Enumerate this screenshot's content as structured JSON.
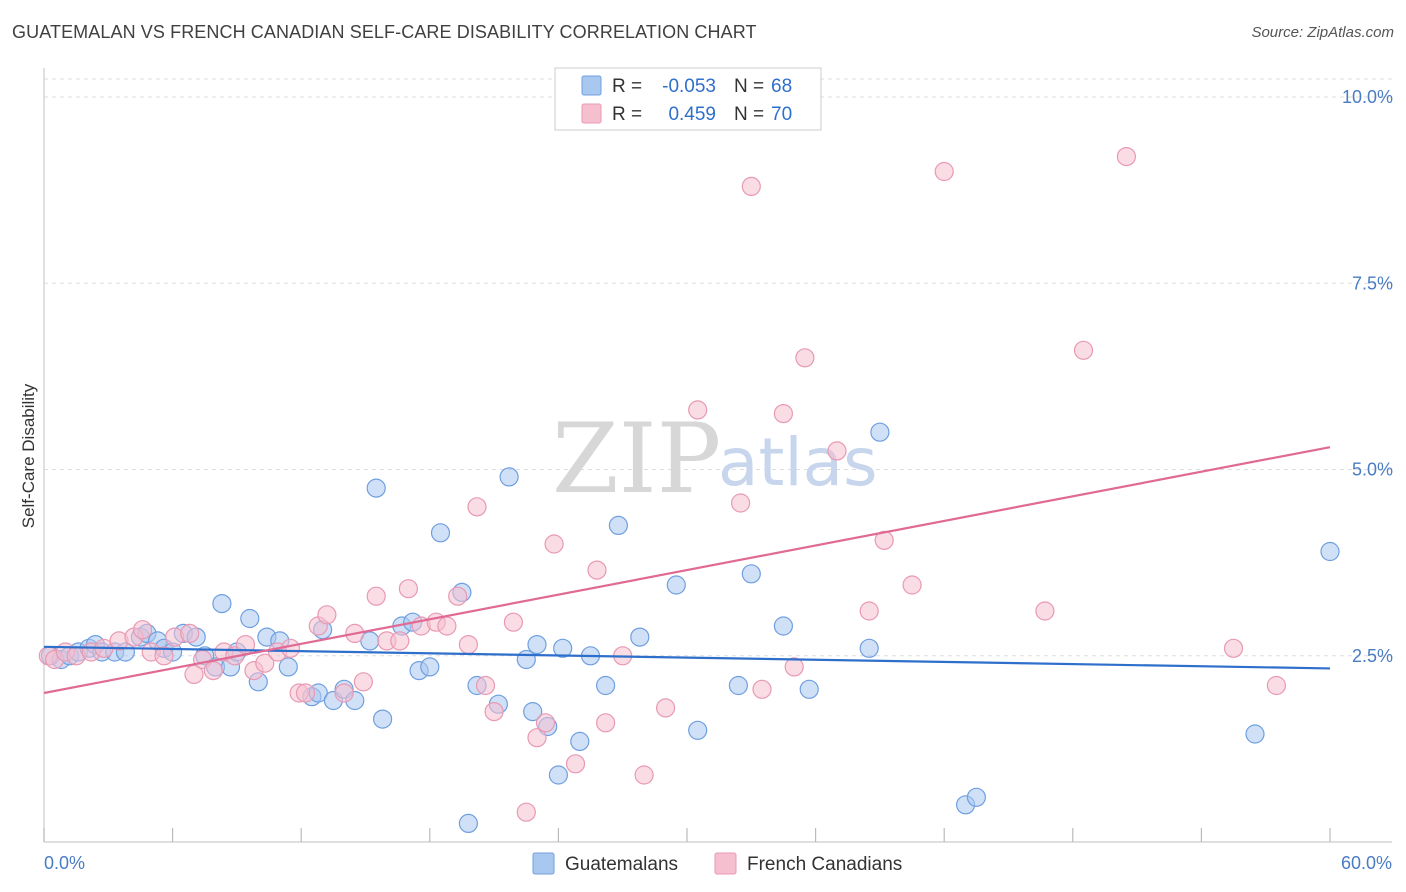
{
  "title": "GUATEMALAN VS FRENCH CANADIAN SELF-CARE DISABILITY CORRELATION CHART",
  "source": "Source: ZipAtlas.com",
  "watermark": {
    "zip": "ZIP",
    "atlas": "atlas"
  },
  "colors": {
    "blue_fill": "#a9c8f0",
    "blue_stroke": "#6f9fe0",
    "blue_line": "#2f6fcc",
    "pink_fill": "#f6bfd0",
    "pink_stroke": "#e899b3",
    "pink_line": "#e06a94",
    "grid": "#dddddd",
    "axis_label": "#4a7cc4"
  },
  "legend": {
    "rows": [
      {
        "r_label": "R =",
        "r_value": "-0.053",
        "n_label": "N =",
        "n_value": "68"
      },
      {
        "r_label": "R =",
        "r_value": "0.459",
        "n_label": "N =",
        "n_value": "70"
      }
    ]
  },
  "bottom_legend": [
    "Guatemalans",
    "French Canadians"
  ],
  "chart_data": {
    "type": "scatter",
    "title": "GUATEMALAN VS FRENCH CANADIAN SELF-CARE DISABILITY CORRELATION CHART",
    "xlabel": "",
    "ylabel": "Self-Care Disability",
    "xlim": [
      0,
      60
    ],
    "ylim": [
      0,
      10.5
    ],
    "x_tick_labels": [
      "0.0%",
      "60.0%"
    ],
    "y_ticks": [
      2.5,
      5.0,
      7.5,
      10.0
    ],
    "y_tick_labels": [
      "2.5%",
      "5.0%",
      "7.5%",
      "10.0%"
    ],
    "grid": true,
    "series": [
      {
        "name": "Guatemalans",
        "r": -0.053,
        "n": 68,
        "trend": {
          "x": [
            0,
            60
          ],
          "y": [
            2.62,
            2.33
          ]
        },
        "points": [
          [
            0.3,
            2.5
          ],
          [
            0.8,
            2.45
          ],
          [
            1.2,
            2.5
          ],
          [
            1.6,
            2.55
          ],
          [
            2.1,
            2.6
          ],
          [
            2.4,
            2.65
          ],
          [
            2.7,
            2.55
          ],
          [
            3.3,
            2.55
          ],
          [
            3.8,
            2.55
          ],
          [
            4.5,
            2.75
          ],
          [
            4.8,
            2.8
          ],
          [
            5.3,
            2.7
          ],
          [
            5.6,
            2.6
          ],
          [
            6.0,
            2.55
          ],
          [
            6.5,
            2.8
          ],
          [
            7.1,
            2.75
          ],
          [
            7.5,
            2.5
          ],
          [
            8.0,
            2.35
          ],
          [
            8.3,
            3.2
          ],
          [
            8.7,
            2.35
          ],
          [
            9.0,
            2.55
          ],
          [
            9.6,
            3.0
          ],
          [
            10.0,
            2.15
          ],
          [
            10.4,
            2.75
          ],
          [
            11.0,
            2.7
          ],
          [
            11.4,
            2.35
          ],
          [
            12.5,
            1.95
          ],
          [
            12.8,
            2.0
          ],
          [
            13.0,
            2.85
          ],
          [
            13.5,
            1.9
          ],
          [
            14.0,
            2.05
          ],
          [
            14.5,
            1.9
          ],
          [
            15.2,
            2.7
          ],
          [
            15.5,
            4.75
          ],
          [
            15.8,
            1.65
          ],
          [
            16.7,
            2.9
          ],
          [
            17.2,
            2.95
          ],
          [
            17.5,
            2.3
          ],
          [
            18.0,
            2.35
          ],
          [
            18.5,
            4.15
          ],
          [
            19.5,
            3.35
          ],
          [
            19.8,
            0.25
          ],
          [
            20.2,
            2.1
          ],
          [
            21.2,
            1.85
          ],
          [
            21.7,
            4.9
          ],
          [
            22.5,
            2.45
          ],
          [
            22.8,
            1.75
          ],
          [
            23.0,
            2.65
          ],
          [
            23.5,
            1.55
          ],
          [
            24.0,
            0.9
          ],
          [
            24.2,
            2.6
          ],
          [
            25.0,
            1.35
          ],
          [
            25.5,
            2.5
          ],
          [
            26.2,
            2.1
          ],
          [
            26.8,
            4.25
          ],
          [
            27.8,
            2.75
          ],
          [
            29.5,
            3.45
          ],
          [
            30.5,
            1.5
          ],
          [
            32.4,
            2.1
          ],
          [
            33.0,
            3.6
          ],
          [
            34.5,
            2.9
          ],
          [
            35.7,
            2.05
          ],
          [
            38.5,
            2.6
          ],
          [
            39.0,
            5.5
          ],
          [
            43.0,
            0.5
          ],
          [
            43.5,
            0.6
          ],
          [
            56.5,
            1.45
          ],
          [
            60.0,
            3.9
          ]
        ]
      },
      {
        "name": "French Canadians",
        "r": 0.459,
        "n": 70,
        "trend": {
          "x": [
            0,
            60
          ],
          "y": [
            2.0,
            5.3
          ]
        },
        "points": [
          [
            0.2,
            2.5
          ],
          [
            0.5,
            2.45
          ],
          [
            1.0,
            2.55
          ],
          [
            1.5,
            2.5
          ],
          [
            2.2,
            2.55
          ],
          [
            2.8,
            2.6
          ],
          [
            3.5,
            2.7
          ],
          [
            4.2,
            2.75
          ],
          [
            4.6,
            2.85
          ],
          [
            5.0,
            2.55
          ],
          [
            5.6,
            2.5
          ],
          [
            6.1,
            2.75
          ],
          [
            6.8,
            2.8
          ],
          [
            7.0,
            2.25
          ],
          [
            7.4,
            2.45
          ],
          [
            7.9,
            2.3
          ],
          [
            8.4,
            2.55
          ],
          [
            8.9,
            2.5
          ],
          [
            9.4,
            2.65
          ],
          [
            9.8,
            2.3
          ],
          [
            10.3,
            2.4
          ],
          [
            10.9,
            2.55
          ],
          [
            11.5,
            2.6
          ],
          [
            11.9,
            2.0
          ],
          [
            12.2,
            2.0
          ],
          [
            12.8,
            2.9
          ],
          [
            13.2,
            3.05
          ],
          [
            14.0,
            2.0
          ],
          [
            14.5,
            2.8
          ],
          [
            14.9,
            2.15
          ],
          [
            15.5,
            3.3
          ],
          [
            16.0,
            2.7
          ],
          [
            16.6,
            2.7
          ],
          [
            17.0,
            3.4
          ],
          [
            17.6,
            2.9
          ],
          [
            18.3,
            2.95
          ],
          [
            18.8,
            2.9
          ],
          [
            19.3,
            3.3
          ],
          [
            19.8,
            2.65
          ],
          [
            20.2,
            4.5
          ],
          [
            20.6,
            2.1
          ],
          [
            21.0,
            1.75
          ],
          [
            21.9,
            2.95
          ],
          [
            22.5,
            0.4
          ],
          [
            23.0,
            1.4
          ],
          [
            23.4,
            1.6
          ],
          [
            23.8,
            4.0
          ],
          [
            24.8,
            1.05
          ],
          [
            25.8,
            3.65
          ],
          [
            26.2,
            1.6
          ],
          [
            27.0,
            2.5
          ],
          [
            28.0,
            0.9
          ],
          [
            29.0,
            1.8
          ],
          [
            30.5,
            5.8
          ],
          [
            32.5,
            4.55
          ],
          [
            33.0,
            8.8
          ],
          [
            33.5,
            2.05
          ],
          [
            34.5,
            5.75
          ],
          [
            35.0,
            2.35
          ],
          [
            35.5,
            6.5
          ],
          [
            37.0,
            5.25
          ],
          [
            38.5,
            3.1
          ],
          [
            39.2,
            4.05
          ],
          [
            40.5,
            3.45
          ],
          [
            42.0,
            9.0
          ],
          [
            46.7,
            3.1
          ],
          [
            48.5,
            6.6
          ],
          [
            50.5,
            9.2
          ],
          [
            55.5,
            2.6
          ],
          [
            57.5,
            2.1
          ]
        ]
      }
    ]
  }
}
